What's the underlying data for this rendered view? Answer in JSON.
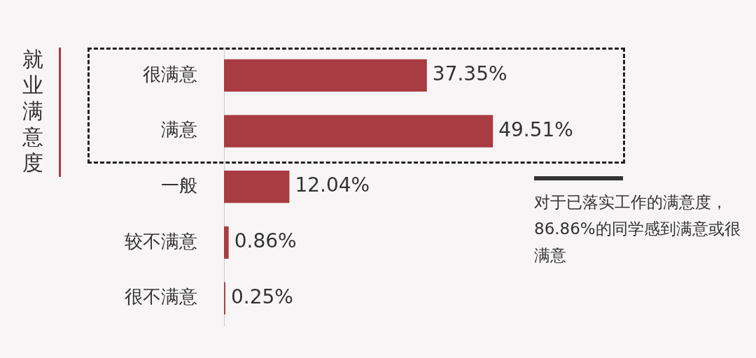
{
  "chart_data": {
    "type": "bar",
    "orientation": "horizontal",
    "ylabel": "就业满意度",
    "categories": [
      "很满意",
      "满意",
      "一般",
      "较不满意",
      "很不满意"
    ],
    "values": [
      37.35,
      49.51,
      12.04,
      0.86,
      0.25
    ],
    "value_labels": [
      "37.35%",
      "49.51%",
      "12.04%",
      "0.86%",
      "0.25%"
    ],
    "color": "#a83c42",
    "legend": false,
    "annotations": [
      "对于已落实工作的满意度，86.86%的同学感到满意或很满意"
    ]
  }
}
